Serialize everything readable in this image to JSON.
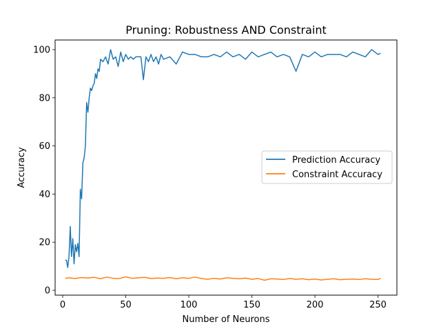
{
  "chart_data": {
    "type": "line",
    "title": "Pruning: Robustness AND Constraint",
    "xlabel": "Number of Neurons",
    "ylabel": "Accuracy",
    "xlim": [
      -6,
      265
    ],
    "ylim": [
      -2,
      104
    ],
    "xticks": [
      0,
      50,
      100,
      150,
      200,
      250
    ],
    "yticks": [
      0,
      20,
      40,
      60,
      80,
      100
    ],
    "grid": false,
    "legend_position": "center-right",
    "series": [
      {
        "name": "Prediction Accuracy",
        "color": "#1f77b4",
        "x": [
          2,
          3,
          4,
          5,
          6,
          7,
          8,
          9,
          10,
          11,
          12,
          13,
          14,
          15,
          16,
          17,
          18,
          19,
          20,
          21,
          22,
          23,
          24,
          25,
          26,
          27,
          28,
          29,
          30,
          32,
          34,
          36,
          38,
          40,
          42,
          44,
          46,
          48,
          50,
          52,
          54,
          56,
          58,
          60,
          62,
          64,
          66,
          68,
          70,
          72,
          74,
          76,
          78,
          80,
          85,
          90,
          95,
          100,
          105,
          110,
          115,
          120,
          125,
          130,
          135,
          140,
          145,
          150,
          155,
          160,
          165,
          170,
          175,
          180,
          185,
          190,
          195,
          200,
          205,
          210,
          215,
          220,
          225,
          230,
          235,
          240,
          245,
          250,
          252
        ],
        "y": [
          12.5,
          12.5,
          9.5,
          14,
          26.5,
          14,
          21.5,
          11,
          19,
          16,
          19.5,
          14,
          42,
          38,
          53,
          55,
          60,
          78,
          74,
          80,
          84,
          83,
          85,
          86,
          90,
          88,
          92,
          91,
          96,
          95,
          97,
          94,
          100,
          96,
          97,
          93,
          99,
          95,
          98,
          96,
          97,
          96,
          97,
          97,
          97,
          87.5,
          97,
          95,
          98,
          95,
          97,
          94,
          98,
          96,
          97,
          94,
          99,
          98,
          98,
          97,
          97,
          98,
          97,
          99,
          97,
          98,
          96,
          99,
          97,
          98,
          99,
          97,
          98,
          97,
          91,
          98,
          97,
          99,
          97,
          98,
          98,
          98,
          97,
          99,
          98,
          97,
          100,
          98,
          98.5
        ]
      },
      {
        "name": "Constraint Accuracy",
        "color": "#ff7f0e",
        "x": [
          2,
          5,
          10,
          15,
          20,
          25,
          30,
          35,
          40,
          45,
          50,
          55,
          60,
          65,
          70,
          75,
          80,
          85,
          90,
          95,
          100,
          105,
          110,
          115,
          120,
          125,
          130,
          135,
          140,
          145,
          150,
          155,
          160,
          165,
          170,
          175,
          180,
          185,
          190,
          195,
          200,
          205,
          210,
          215,
          220,
          225,
          230,
          235,
          240,
          245,
          250,
          252
        ],
        "y": [
          5,
          5.2,
          4.9,
          5.3,
          5.1,
          5.4,
          4.8,
          5.5,
          5.0,
          4.9,
          5.6,
          5.0,
          5.2,
          5.4,
          4.9,
          5.1,
          5.0,
          5.3,
          4.8,
          5.2,
          5.0,
          5.5,
          4.9,
          4.6,
          5.0,
          4.7,
          5.2,
          5.0,
          4.8,
          5.1,
          4.6,
          4.9,
          4.2,
          4.8,
          4.7,
          4.5,
          4.9,
          4.6,
          4.8,
          4.4,
          4.7,
          4.3,
          4.6,
          4.8,
          4.4,
          4.6,
          4.7,
          4.5,
          4.8,
          4.6,
          4.5,
          5.0
        ]
      }
    ]
  }
}
